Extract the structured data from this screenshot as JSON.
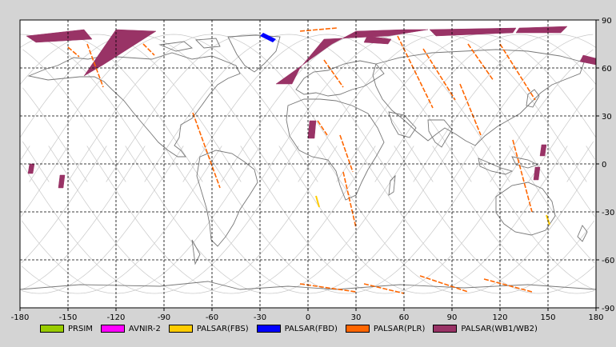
{
  "map": {
    "lat_ticks": [
      90,
      60,
      30,
      0,
      -30,
      -60,
      -90
    ],
    "lon_ticks": [
      -180,
      -150,
      -120,
      -90,
      -60,
      -30,
      0,
      30,
      60,
      90,
      120,
      150,
      180
    ],
    "lat_range": [
      -90,
      90
    ],
    "lon_range": [
      -180,
      180
    ],
    "grid": "dashed",
    "colors": {
      "background": "#d4d4d4",
      "plot_bg": "#ffffff",
      "coastline": "#777777",
      "orbit_track": "#c8c8c8"
    }
  },
  "legend": [
    {
      "label": "PRSIM",
      "color": "#99cc00"
    },
    {
      "label": "AVNIR-2",
      "color": "#ff00ff"
    },
    {
      "label": "PALSAR(FBS)",
      "color": "#ffcc00"
    },
    {
      "label": "PALSAR(FBD)",
      "color": "#0000ff"
    },
    {
      "label": "PALSAR(PLR)",
      "color": "#ff6600"
    },
    {
      "label": "PALSAR(WB1/WB2)",
      "color": "#993366"
    }
  ],
  "scenes": {
    "wb": [
      {
        "lon": [
          -176,
          -140,
          -135,
          -170
        ],
        "lat": [
          80,
          84,
          78,
          76
        ]
      },
      {
        "lon": [
          -120,
          -95,
          -128,
          -140
        ],
        "lat": [
          84,
          83,
          62,
          55
        ]
      },
      {
        "lon": [
          -20,
          15,
          30,
          60,
          75,
          50,
          10,
          -5,
          -10
        ],
        "lat": [
          50,
          75,
          83,
          84,
          84,
          80,
          78,
          60,
          50
        ]
      },
      {
        "lon": [
          76,
          130,
          128,
          80
        ],
        "lat": [
          84,
          85,
          82,
          80
        ]
      },
      {
        "lon": [
          132,
          162,
          158,
          130
        ],
        "lat": [
          85,
          86,
          82,
          82
        ]
      },
      {
        "lon": [
          37,
          52,
          50,
          35
        ],
        "lat": [
          80,
          78,
          75,
          76
        ]
      },
      {
        "lon": [
          172,
          180,
          180,
          170
        ],
        "lat": [
          68,
          66,
          62,
          64
        ]
      },
      {
        "lon": [
          1,
          5,
          4,
          0
        ],
        "lat": [
          27,
          27,
          16,
          16
        ]
      },
      {
        "lon": [
          146,
          149,
          148,
          145
        ],
        "lat": [
          12,
          12,
          5,
          5
        ]
      },
      {
        "lon": [
          142,
          145,
          144,
          141
        ],
        "lat": [
          -2,
          -2,
          -10,
          -10
        ]
      },
      {
        "lon": [
          -174,
          -171,
          -172,
          -175
        ],
        "lat": [
          0,
          0,
          -6,
          -6
        ]
      },
      {
        "lon": [
          -155,
          -152,
          -153,
          -156
        ],
        "lat": [
          -7,
          -7,
          -15,
          -15
        ]
      }
    ],
    "fbd": [
      {
        "lon": [
          -28,
          -20,
          -22,
          -30
        ],
        "lat": [
          82,
          78,
          76,
          80
        ]
      }
    ],
    "fbs": [
      {
        "lon": [
          5,
          7
        ],
        "lat": [
          -20,
          -27
        ]
      },
      {
        "lon": [
          149,
          151
        ],
        "lat": [
          -32,
          -38
        ]
      }
    ],
    "plr": [
      {
        "lon": [
          -138,
          -128
        ],
        "lat": [
          75,
          48
        ]
      },
      {
        "lon": [
          -150,
          -143
        ],
        "lat": [
          73,
          67
        ]
      },
      {
        "lon": [
          -103,
          -96
        ],
        "lat": [
          75,
          68
        ]
      },
      {
        "lon": [
          -72,
          -55
        ],
        "lat": [
          32,
          -15
        ]
      },
      {
        "lon": [
          -5,
          18
        ],
        "lat": [
          83,
          85
        ]
      },
      {
        "lon": [
          10,
          22
        ],
        "lat": [
          65,
          48
        ]
      },
      {
        "lon": [
          6,
          12
        ],
        "lat": [
          27,
          18
        ]
      },
      {
        "lon": [
          20,
          28
        ],
        "lat": [
          18,
          -5
        ]
      },
      {
        "lon": [
          22,
          30
        ],
        "lat": [
          -5,
          -40
        ]
      },
      {
        "lon": [
          56,
          78
        ],
        "lat": [
          80,
          35
        ]
      },
      {
        "lon": [
          72,
          92
        ],
        "lat": [
          72,
          40
        ]
      },
      {
        "lon": [
          100,
          116
        ],
        "lat": [
          75,
          52
        ]
      },
      {
        "lon": [
          95,
          108
        ],
        "lat": [
          50,
          18
        ]
      },
      {
        "lon": [
          120,
          142
        ],
        "lat": [
          75,
          40
        ]
      },
      {
        "lon": [
          128,
          140
        ],
        "lat": [
          15,
          -30
        ]
      },
      {
        "lon": [
          -5,
          30
        ],
        "lat": [
          -75,
          -80
        ]
      },
      {
        "lon": [
          35,
          60
        ],
        "lat": [
          -75,
          -81
        ]
      },
      {
        "lon": [
          70,
          100
        ],
        "lat": [
          -70,
          -80
        ]
      },
      {
        "lon": [
          110,
          140
        ],
        "lat": [
          -72,
          -80
        ]
      }
    ]
  }
}
